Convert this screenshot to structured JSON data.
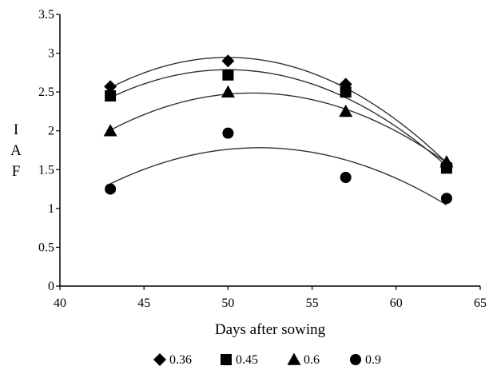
{
  "chart_data": {
    "type": "scatter",
    "title": "",
    "xlabel": "Days after sowing",
    "ylabel": "IAF",
    "xlim": [
      40,
      65
    ],
    "ylim": [
      0,
      3.5
    ],
    "x_ticks": [
      "40",
      "45",
      "50",
      "55",
      "60",
      "65"
    ],
    "y_ticks": [
      "0",
      "0.5",
      "1",
      "1.5",
      "2",
      "2.5",
      "3",
      "3.5"
    ],
    "x": [
      43,
      50,
      57,
      63
    ],
    "grid": false,
    "legend_position": "bottom",
    "trendline": "polynomial-2",
    "series": [
      {
        "name": "0.36",
        "marker": "diamond",
        "values": [
          2.57,
          2.9,
          2.6,
          1.57
        ]
      },
      {
        "name": "0.45",
        "marker": "square",
        "values": [
          2.45,
          2.72,
          2.5,
          1.52
        ]
      },
      {
        "name": "0.6",
        "marker": "triangle",
        "values": [
          2.0,
          2.5,
          2.25,
          1.6
        ]
      },
      {
        "name": "0.9",
        "marker": "circle",
        "values": [
          1.25,
          1.97,
          1.4,
          1.13
        ]
      }
    ]
  },
  "colors": {
    "marks": "#000000",
    "trend": "#333333"
  }
}
